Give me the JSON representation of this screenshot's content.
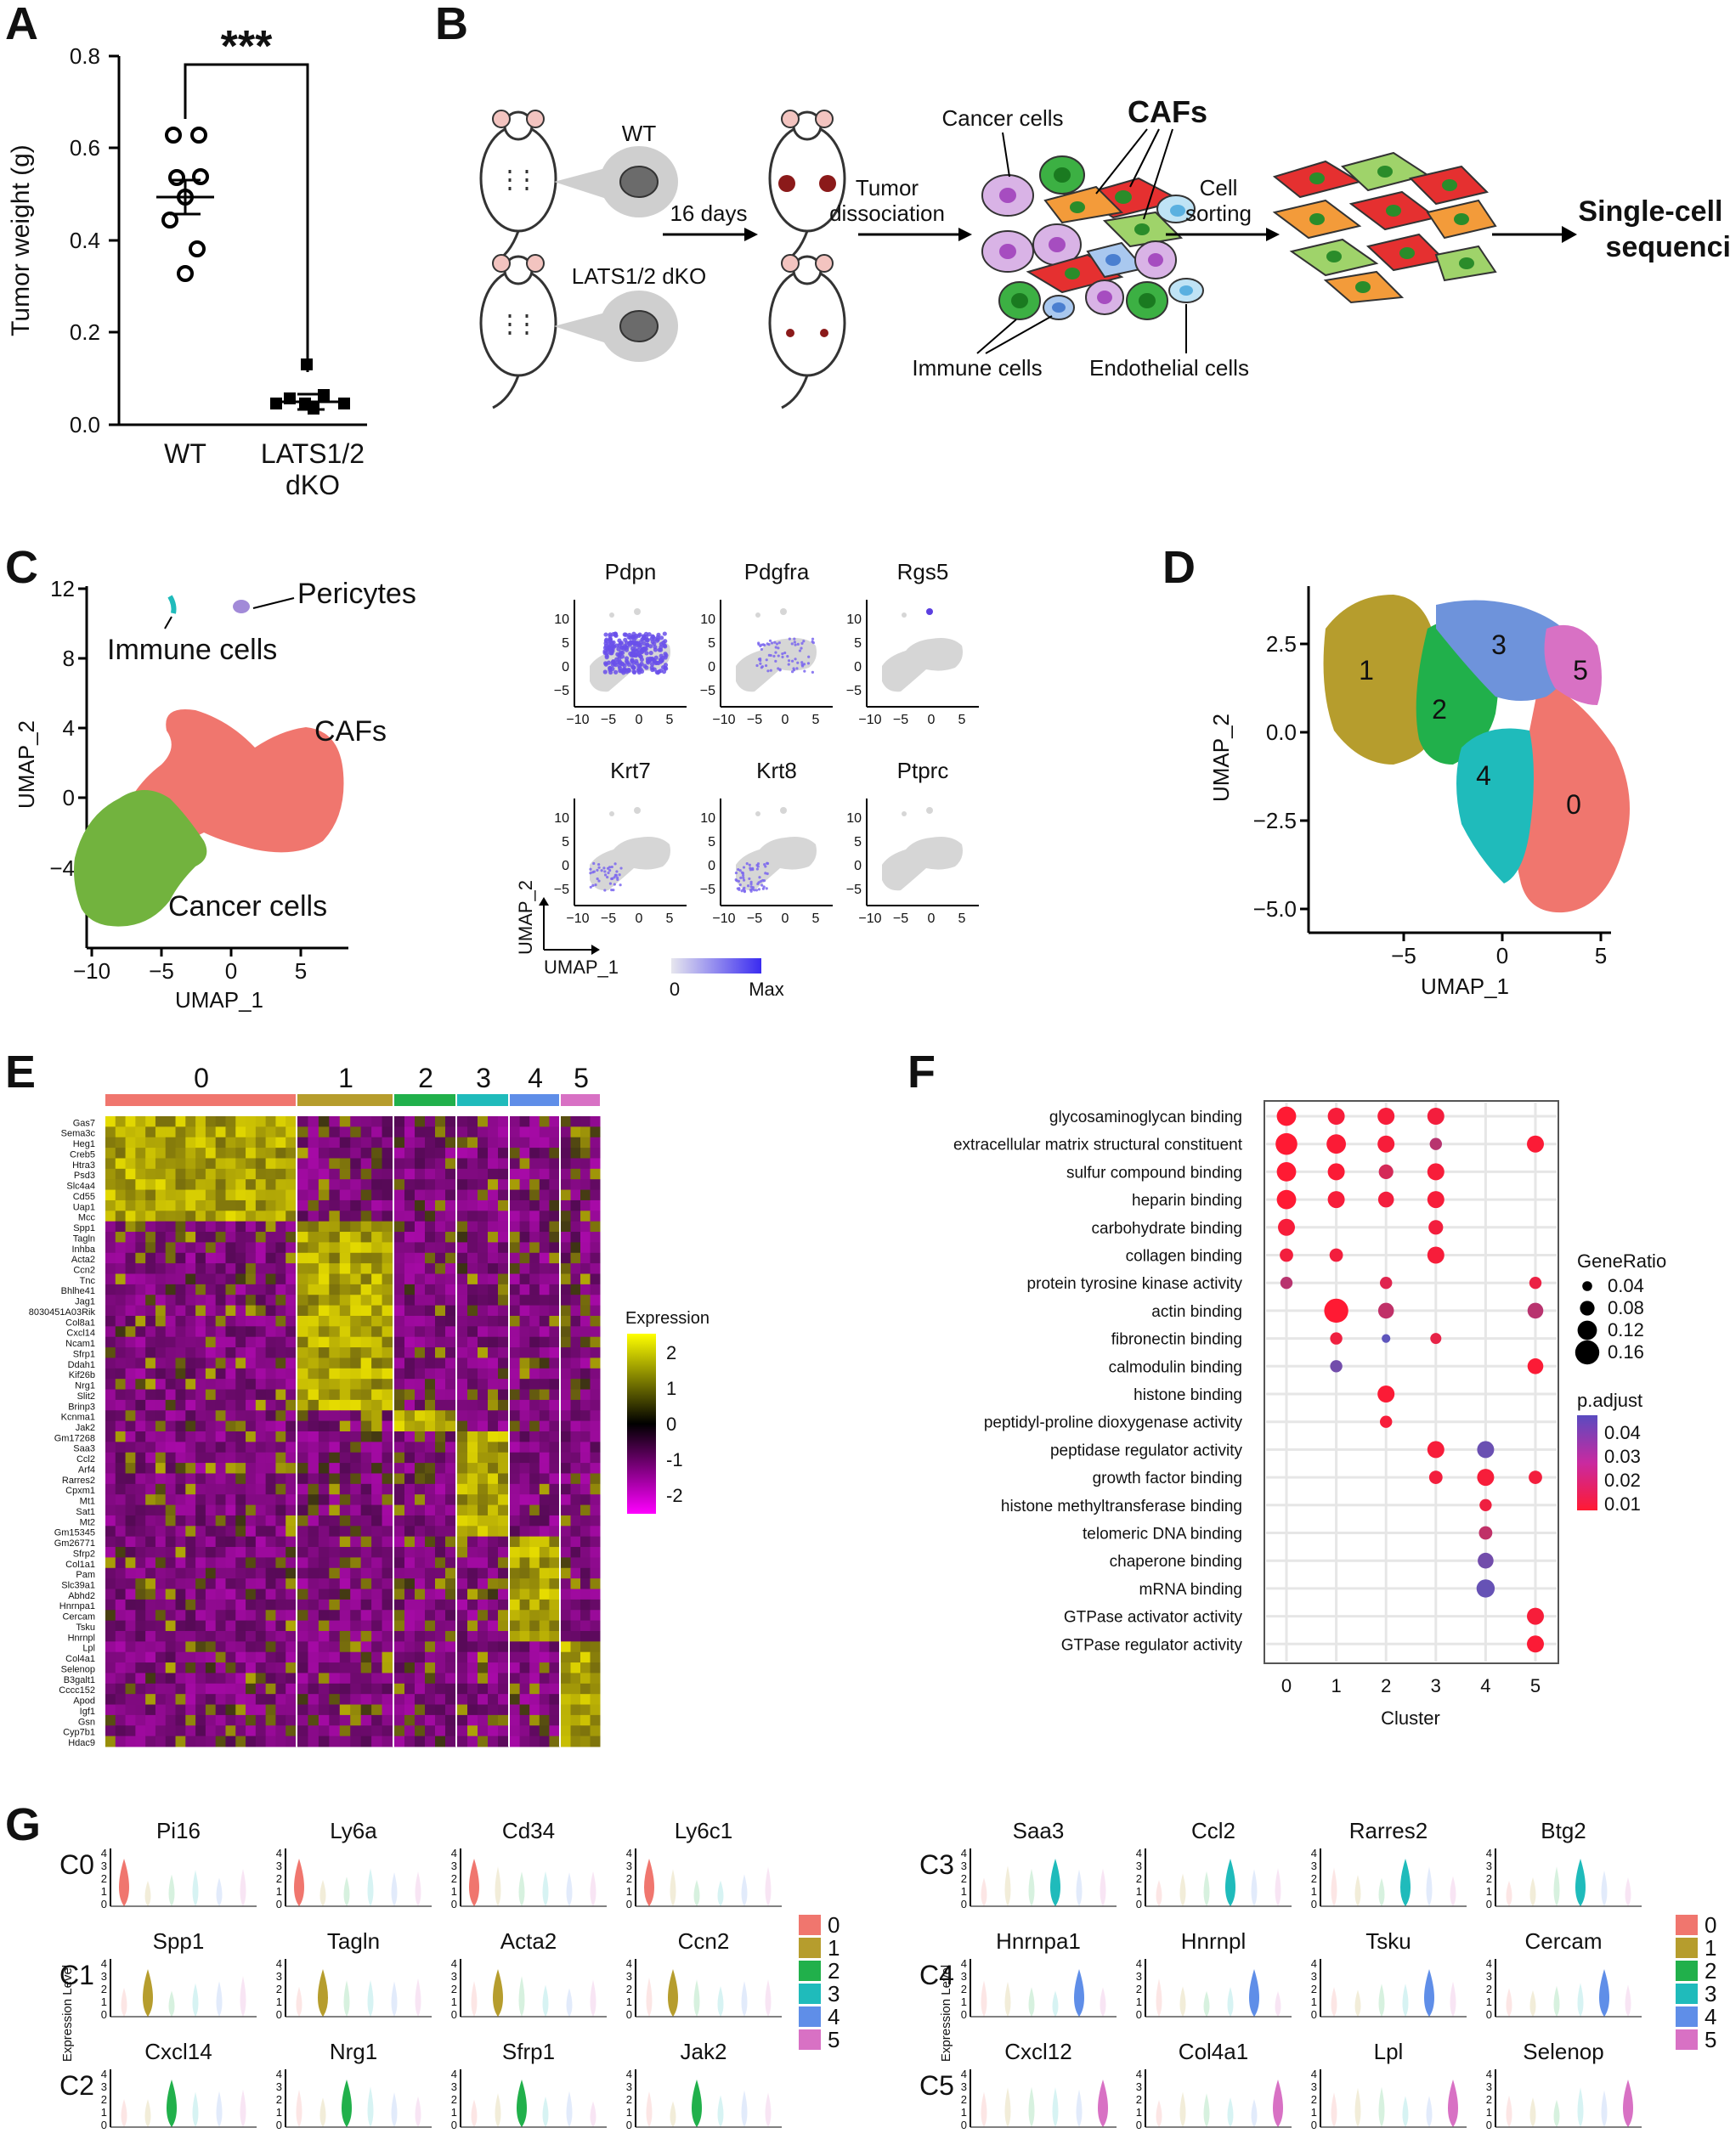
{
  "panel_labels": [
    "A",
    "B",
    "C",
    "D",
    "E",
    "F",
    "G"
  ],
  "panel_a": {
    "ylabel": "Tumor weight (g)",
    "significance": "***",
    "yticks": [
      "0.0",
      "0.2",
      "0.4",
      "0.6",
      "0.8"
    ],
    "xlabels": [
      [
        "WT"
      ],
      [
        "LATS1/2",
        "dKO"
      ]
    ]
  },
  "panel_b": {
    "wt": "WT",
    "dko": "LATS1/2 dKO",
    "days": "16 days",
    "step1": [
      "Tumor",
      "dissociation"
    ],
    "step2": [
      "Cell",
      "sorting"
    ],
    "cancer": "Cancer cells",
    "cafs": "CAFs",
    "immune": "Immune cells",
    "endothelial": "Endothelial cells",
    "output": [
      "Single-cell RNA",
      "sequencing"
    ]
  },
  "panel_c": {
    "xlabel": "UMAP_1",
    "ylabel": "UMAP_2",
    "xticks": [
      "−10",
      "−5",
      "0",
      "5"
    ],
    "yticks": [
      "12",
      "8",
      "4",
      "0",
      "−4"
    ],
    "labels": {
      "pericytes": "Pericytes",
      "immune": "Immune cells",
      "cafs": "CAFs",
      "cancer": "Cancer cells"
    },
    "genes": [
      "Pdpn",
      "Pdgfra",
      "Rgs5",
      "Krt7",
      "Krt8",
      "Ptprc"
    ],
    "mini_xticks": [
      "−10",
      "−5",
      "0",
      "5"
    ],
    "mini_yticks": [
      "10",
      "5",
      "0",
      "−5"
    ],
    "mini_xlabel": "UMAP_1",
    "mini_ylabel": "UMAP_2",
    "scale_min": "0",
    "scale_max": "Max"
  },
  "panel_d": {
    "xlabel": "UMAP_1",
    "ylabel": "UMAP_2",
    "xticks": [
      "−5",
      "0",
      "5"
    ],
    "yticks": [
      "2.5",
      "0.0",
      "−2.5",
      "−5.0"
    ],
    "clusters": [
      "0",
      "1",
      "2",
      "3",
      "4",
      "5"
    ]
  },
  "panel_e": {
    "clusters": [
      "0",
      "1",
      "2",
      "3",
      "4",
      "5"
    ],
    "genes": [
      "Gas7",
      "Sema3c",
      "Heg1",
      "Creb5",
      "Htra3",
      "Psd3",
      "Slc4a4",
      "Cd55",
      "Uap1",
      "Mcc",
      "Spp1",
      "Tagln",
      "Inhba",
      "Acta2",
      "Ccn2",
      "Tnc",
      "Bhlhe41",
      "Jag1",
      "8030451A03Rik",
      "Col8a1",
      "Cxcl14",
      "Ncam1",
      "Sfrp1",
      "Ddah1",
      "Kif26b",
      "Nrg1",
      "Slit2",
      "Brinp3",
      "Kcnma1",
      "Jak2",
      "Gm17268",
      "Saa3",
      "Ccl2",
      "Arf4",
      "Rarres2",
      "Cpxm1",
      "Mt1",
      "Sat1",
      "Mt2",
      "Gm15345",
      "Gm26771",
      "Sfrp2",
      "Col1a1",
      "Pam",
      "Slc39a1",
      "Abhd2",
      "Hnrnpa1",
      "Cercam",
      "Tsku",
      "Hnrnpl",
      "Lpl",
      "Col4a1",
      "Selenop",
      "B3galt1",
      "Cccc152",
      "Apod",
      "Igf1",
      "Gsn",
      "Cyp7b1",
      "Hdac9"
    ],
    "legend_title": "Expression",
    "legend_ticks": [
      "2",
      "1",
      "0",
      "-1",
      "-2"
    ]
  },
  "panel_f": {
    "terms": [
      "glycosaminoglycan binding",
      "extracellular matrix structural constituent",
      "sulfur compound binding",
      "heparin binding",
      "carbohydrate binding",
      "collagen binding",
      "protein tyrosine kinase activity",
      "actin binding",
      "fibronectin binding",
      "calmodulin binding",
      "histone binding",
      "peptidyl-proline dioxygenase activity",
      "peptidase regulator activity",
      "growth factor binding",
      "histone methyltransferase binding",
      "telomeric DNA binding",
      "chaperone binding",
      "mRNA binding",
      "GTPase activator activity",
      "GTPase regulator activity"
    ],
    "clusters": [
      "0",
      "1",
      "2",
      "3",
      "4",
      "5"
    ],
    "xlabel": "Cluster",
    "size_title": "GeneRatio",
    "size_ticks": [
      "0.04",
      "0.08",
      "0.12",
      "0.16"
    ],
    "color_title": "p.adjust",
    "color_ticks": [
      "0.04",
      "0.03",
      "0.02",
      "0.01"
    ],
    "dots": [
      {
        "term": 0,
        "cluster": 0,
        "ratio": 0.12,
        "p": 0.004
      },
      {
        "term": 0,
        "cluster": 1,
        "ratio": 0.1,
        "p": 0.006
      },
      {
        "term": 0,
        "cluster": 2,
        "ratio": 0.1,
        "p": 0.006
      },
      {
        "term": 0,
        "cluster": 3,
        "ratio": 0.1,
        "p": 0.007
      },
      {
        "term": 1,
        "cluster": 0,
        "ratio": 0.14,
        "p": 0.004
      },
      {
        "term": 1,
        "cluster": 1,
        "ratio": 0.12,
        "p": 0.005
      },
      {
        "term": 1,
        "cluster": 2,
        "ratio": 0.1,
        "p": 0.006
      },
      {
        "term": 1,
        "cluster": 3,
        "ratio": 0.06,
        "p": 0.022
      },
      {
        "term": 1,
        "cluster": 5,
        "ratio": 0.1,
        "p": 0.005
      },
      {
        "term": 2,
        "cluster": 0,
        "ratio": 0.12,
        "p": 0.004
      },
      {
        "term": 2,
        "cluster": 1,
        "ratio": 0.1,
        "p": 0.005
      },
      {
        "term": 2,
        "cluster": 2,
        "ratio": 0.08,
        "p": 0.015
      },
      {
        "term": 2,
        "cluster": 3,
        "ratio": 0.1,
        "p": 0.006
      },
      {
        "term": 3,
        "cluster": 0,
        "ratio": 0.12,
        "p": 0.004
      },
      {
        "term": 3,
        "cluster": 1,
        "ratio": 0.1,
        "p": 0.006
      },
      {
        "term": 3,
        "cluster": 2,
        "ratio": 0.09,
        "p": 0.007
      },
      {
        "term": 3,
        "cluster": 3,
        "ratio": 0.1,
        "p": 0.006
      },
      {
        "term": 4,
        "cluster": 0,
        "ratio": 0.1,
        "p": 0.006
      },
      {
        "term": 4,
        "cluster": 3,
        "ratio": 0.08,
        "p": 0.007
      },
      {
        "term": 5,
        "cluster": 0,
        "ratio": 0.07,
        "p": 0.007
      },
      {
        "term": 5,
        "cluster": 1,
        "ratio": 0.07,
        "p": 0.007
      },
      {
        "term": 5,
        "cluster": 3,
        "ratio": 0.1,
        "p": 0.006
      },
      {
        "term": 6,
        "cluster": 0,
        "ratio": 0.06,
        "p": 0.022
      },
      {
        "term": 6,
        "cluster": 2,
        "ratio": 0.06,
        "p": 0.012
      },
      {
        "term": 6,
        "cluster": 5,
        "ratio": 0.06,
        "p": 0.009
      },
      {
        "term": 7,
        "cluster": 1,
        "ratio": 0.16,
        "p": 0.004
      },
      {
        "term": 7,
        "cluster": 2,
        "ratio": 0.09,
        "p": 0.02
      },
      {
        "term": 7,
        "cluster": 5,
        "ratio": 0.09,
        "p": 0.022
      },
      {
        "term": 8,
        "cluster": 1,
        "ratio": 0.06,
        "p": 0.008
      },
      {
        "term": 8,
        "cluster": 2,
        "ratio": 0.03,
        "p": 0.045
      },
      {
        "term": 8,
        "cluster": 3,
        "ratio": 0.05,
        "p": 0.01
      },
      {
        "term": 9,
        "cluster": 1,
        "ratio": 0.06,
        "p": 0.04
      },
      {
        "term": 9,
        "cluster": 5,
        "ratio": 0.09,
        "p": 0.005
      },
      {
        "term": 10,
        "cluster": 2,
        "ratio": 0.1,
        "p": 0.005
      },
      {
        "term": 11,
        "cluster": 2,
        "ratio": 0.06,
        "p": 0.006
      },
      {
        "term": 12,
        "cluster": 3,
        "ratio": 0.1,
        "p": 0.006
      },
      {
        "term": 12,
        "cluster": 4,
        "ratio": 0.1,
        "p": 0.042
      },
      {
        "term": 13,
        "cluster": 3,
        "ratio": 0.07,
        "p": 0.007
      },
      {
        "term": 13,
        "cluster": 4,
        "ratio": 0.1,
        "p": 0.006
      },
      {
        "term": 13,
        "cluster": 5,
        "ratio": 0.07,
        "p": 0.007
      },
      {
        "term": 14,
        "cluster": 4,
        "ratio": 0.06,
        "p": 0.008
      },
      {
        "term": 15,
        "cluster": 4,
        "ratio": 0.07,
        "p": 0.02
      },
      {
        "term": 16,
        "cluster": 4,
        "ratio": 0.09,
        "p": 0.04
      },
      {
        "term": 17,
        "cluster": 4,
        "ratio": 0.11,
        "p": 0.043
      },
      {
        "term": 18,
        "cluster": 5,
        "ratio": 0.1,
        "p": 0.006
      },
      {
        "term": 19,
        "cluster": 5,
        "ratio": 0.1,
        "p": 0.005
      }
    ]
  },
  "panel_g": {
    "left_rows": [
      {
        "label": "C0",
        "genes": [
          "Pi16",
          "Ly6a",
          "Cd34",
          "Ly6c1"
        ]
      },
      {
        "label": "C1",
        "genes": [
          "Spp1",
          "Tagln",
          "Acta2",
          "Ccn2"
        ]
      },
      {
        "label": "C2",
        "genes": [
          "Cxcl14",
          "Nrg1",
          "Sfrp1",
          "Jak2"
        ]
      }
    ],
    "right_rows": [
      {
        "label": "C3",
        "genes": [
          "Saa3",
          "Ccl2",
          "Rarres2",
          "Btg2"
        ]
      },
      {
        "label": "C4",
        "genes": [
          "Hnrnpa1",
          "Hnrnpl",
          "Tsku",
          "Cercam"
        ]
      },
      {
        "label": "C5",
        "genes": [
          "Cxcl12",
          "Col4a1",
          "Lpl",
          "Selenop"
        ]
      }
    ],
    "ylabel": "Expression Level",
    "legend": [
      "0",
      "1",
      "2",
      "3",
      "4",
      "5"
    ]
  },
  "colors": {
    "cluster": [
      "#f0766e",
      "#b69d2d",
      "#21b04b",
      "#1fbbbb",
      "#5f8ee8",
      "#d871c4"
    ],
    "cafs_red": "#f0766e",
    "cancer_green": "#72b33e",
    "feature_purple": "#5b3fe0",
    "heat_high": "#e6e600",
    "heat_low": "#ff00ff"
  }
}
